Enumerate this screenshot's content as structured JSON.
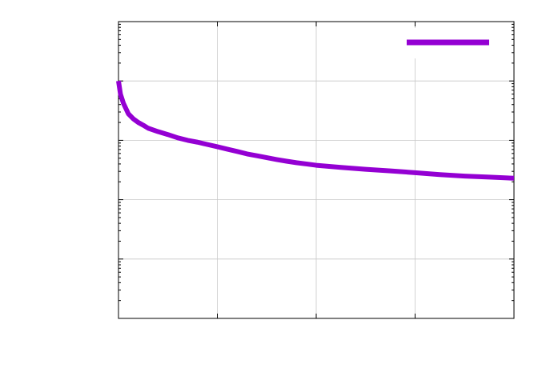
{
  "chart_data": {
    "type": "line",
    "title": "",
    "xlabel": "",
    "ylabel": "",
    "xlim": [
      0,
      4
    ],
    "ylim": [
      1,
      100000
    ],
    "y_scale": "log",
    "grid": true,
    "legend_position": "top-right",
    "colors": {
      "series": "#9400d3",
      "grid": "#c8c8c8",
      "axis": "#000000"
    },
    "series": [
      {
        "name": "",
        "x": [
          0.0,
          0.02,
          0.05,
          0.1,
          0.15,
          0.2,
          0.25,
          0.3,
          0.4,
          0.5,
          0.6,
          0.7,
          0.8,
          0.9,
          1.0,
          1.1,
          1.2,
          1.3,
          1.4,
          1.5,
          1.6,
          1.7,
          1.8,
          1.9,
          2.0,
          2.25,
          2.5,
          2.75,
          3.0,
          3.25,
          3.5,
          3.75,
          4.0
        ],
        "y": [
          10000,
          6000,
          4200,
          2800,
          2300,
          2000,
          1800,
          1600,
          1400,
          1250,
          1100,
          1000,
          930,
          850,
          780,
          710,
          650,
          590,
          550,
          510,
          475,
          445,
          420,
          400,
          380,
          350,
          325,
          305,
          285,
          265,
          250,
          240,
          230
        ]
      }
    ]
  }
}
